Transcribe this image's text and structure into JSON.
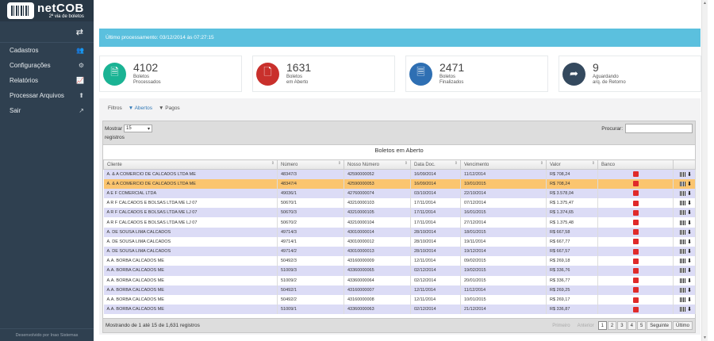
{
  "app": {
    "brand": "netCOB",
    "tagline": "2ª via de boletos",
    "toggle_icon": "exchange-icon"
  },
  "sidebar": {
    "items": [
      {
        "label": "Cadastros",
        "icon": "users-icon",
        "glyph": "👥"
      },
      {
        "label": "Configurações",
        "icon": "cogs-icon",
        "glyph": "⚙"
      },
      {
        "label": "Relatórios",
        "icon": "line-chart-icon",
        "glyph": "📈"
      },
      {
        "label": "Processar Arquivos",
        "icon": "upload-icon",
        "glyph": "⬆"
      },
      {
        "label": "Sair",
        "icon": "external-link-icon",
        "glyph": "↗"
      }
    ],
    "footer": "Desenvolvido por Inao Sistemas"
  },
  "alert": {
    "text": "Último processamento: 03/12/2014 às 07:27:15"
  },
  "stats": [
    {
      "number": "4102",
      "line1": "Boletos",
      "line2": "Processados",
      "color": "#1ab394",
      "icon": "file-icon"
    },
    {
      "number": "1631",
      "line1": "Boletos",
      "line2": "em Aberto",
      "color": "#c9302c",
      "icon": "file-outline-icon"
    },
    {
      "number": "2471",
      "line1": "Boletos",
      "line2": "Finalizados",
      "color": "#2e6fb3",
      "icon": "file-text-icon"
    },
    {
      "number": "9",
      "line1": "Aguardando",
      "line2": "arq. de Retorno",
      "color": "#34495e",
      "icon": "share-icon"
    }
  ],
  "filters": {
    "label": "Filtros",
    "open": "Abertos",
    "paid": "Pagos"
  },
  "grid": {
    "show_label": "Mostrar",
    "page_size": "15",
    "records_label": "registros",
    "search_label": "Procurar:",
    "title": "Boletos em Aberto",
    "columns": [
      "Cliente",
      "Número",
      "Nosso Número",
      "Data Doc.",
      "Vencimento",
      "Valor",
      "Banco"
    ],
    "rows": [
      [
        "A. & A COMERCIO DE CALCADOS LTDA ME",
        "48347/3",
        "42590000052",
        "16/09/2014",
        "11/12/2014",
        "R$ 708,24"
      ],
      [
        "A. & A COMERCIO DE CALCADOS LTDA ME",
        "48347/4",
        "42590000053",
        "16/09/2014",
        "10/01/2015",
        "R$ 708,24"
      ],
      [
        "A E F COMERCIAL LTDA",
        "49036/1",
        "42760000074",
        "03/10/2014",
        "22/10/2014",
        "R$ 3.578,04"
      ],
      [
        "A R F CALCADOS E BOLSAS LTDA ME LJ 07",
        "50670/1",
        "43210000103",
        "17/11/2014",
        "07/12/2014",
        "R$ 1.375,47"
      ],
      [
        "A R F CALCADOS E BOLSAS LTDA ME LJ 07",
        "50670/3",
        "43210000105",
        "17/11/2014",
        "16/01/2015",
        "R$ 1.374,65"
      ],
      [
        "A R F CALCADOS E BOLSAS LTDA ME LJ 07",
        "50670/2",
        "43210000104",
        "17/11/2014",
        "27/12/2014",
        "R$ 1.375,48"
      ],
      [
        "A. DE SOUSA LIMA CALCADOS",
        "49714/3",
        "43010000014",
        "28/10/2014",
        "18/01/2015",
        "R$ 667,58"
      ],
      [
        "A. DE SOUSA LIMA CALCADOS",
        "49714/1",
        "43010000012",
        "28/10/2014",
        "19/11/2014",
        "R$ 667,77"
      ],
      [
        "A. DE SOUSA LIMA CALCADOS",
        "49714/2",
        "43010000013",
        "28/10/2014",
        "19/12/2014",
        "R$ 667,57"
      ],
      [
        "A.A. BORBA CALCADOS ME",
        "50492/3",
        "43160000009",
        "12/11/2014",
        "09/02/2015",
        "R$ 269,18"
      ],
      [
        "A.A. BORBA CALCADOS ME",
        "51009/3",
        "43360000065",
        "02/12/2014",
        "19/02/2015",
        "R$ 336,76"
      ],
      [
        "A.A. BORBA CALCADOS ME",
        "51009/2",
        "43360000064",
        "02/12/2014",
        "20/01/2015",
        "R$ 336,77"
      ],
      [
        "A.A. BORBA CALCADOS ME",
        "50492/1",
        "43160000007",
        "12/11/2014",
        "11/12/2014",
        "R$ 269,25"
      ],
      [
        "A.A. BORBA CALCADOS ME",
        "50492/2",
        "43160000008",
        "12/11/2014",
        "10/01/2015",
        "R$ 269,17"
      ],
      [
        "A.A. BORBA CALCADOS ME",
        "51009/1",
        "43360000063",
        "02/12/2014",
        "21/12/2014",
        "R$ 336,87"
      ]
    ],
    "selected_row": 1,
    "footer_info": "Mostrando de 1 até 15 de 1,631 registros",
    "pager": [
      "Primeiro",
      "Anterior",
      "1",
      "2",
      "3",
      "4",
      "5",
      "Seguinte",
      "Último"
    ]
  }
}
